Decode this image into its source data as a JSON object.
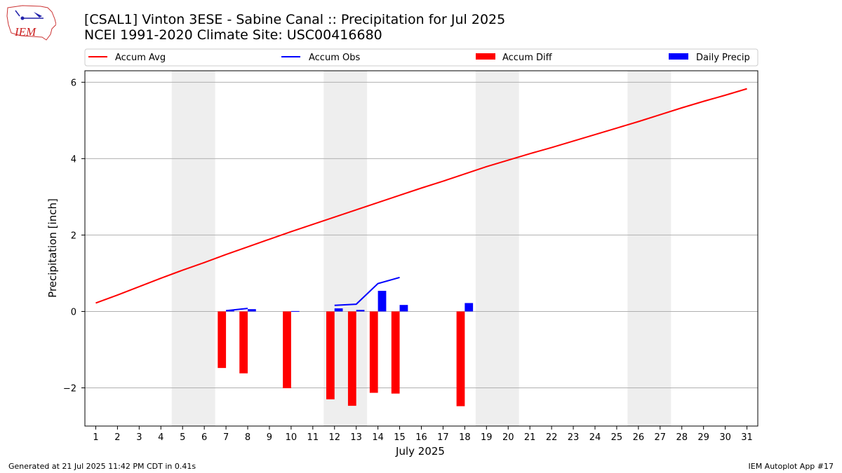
{
  "title": "[CSAL1] Vinton 3ESE - Sabine Canal :: Precipitation for Jul 2025",
  "subtitle": "NCEI 1991-2020 Climate Site: USC00416680",
  "logo_text": "IEM",
  "footer_left": "Generated at 21 Jul 2025 11:42 PM CDT in 0.41s",
  "footer_right": "IEM Autoplot App #17",
  "colors": {
    "accum_avg": "#ff0000",
    "accum_obs": "#0000ff",
    "accum_diff": "#ff0000",
    "daily_precip": "#0000ff",
    "weekend_shade": "#eeeeee",
    "grid": "#b0b0b0"
  },
  "chart_data": {
    "type": "bar",
    "xlabel": "July 2025",
    "ylabel": "Precipitation [inch]",
    "xlim": [
      0.5,
      31.5
    ],
    "ylim": [
      -3.0,
      6.3
    ],
    "yticks": [
      -2,
      0,
      2,
      4,
      6
    ],
    "xticks": [
      1,
      2,
      3,
      4,
      5,
      6,
      7,
      8,
      9,
      10,
      11,
      12,
      13,
      14,
      15,
      16,
      17,
      18,
      19,
      20,
      21,
      22,
      23,
      24,
      25,
      26,
      27,
      28,
      29,
      30,
      31
    ],
    "grid": "horizontal",
    "legend": [
      "Accum Avg",
      "Accum Obs",
      "Accum Diff",
      "Daily Precip"
    ],
    "legend_placement": "top",
    "weekend_shading": [
      [
        4.5,
        6.5
      ],
      [
        11.5,
        13.5
      ],
      [
        18.5,
        20.5
      ],
      [
        25.5,
        27.5
      ]
    ],
    "accum_avg": {
      "name": "Accum Avg",
      "days": [
        1,
        2,
        3,
        4,
        5,
        6,
        7,
        8,
        9,
        10,
        11,
        12,
        13,
        14,
        15,
        16,
        17,
        18,
        19,
        20,
        21,
        22,
        23,
        24,
        25,
        26,
        27,
        28,
        29,
        30,
        31
      ],
      "values": [
        0.22,
        0.43,
        0.65,
        0.87,
        1.08,
        1.28,
        1.49,
        1.69,
        1.89,
        2.09,
        2.28,
        2.47,
        2.66,
        2.85,
        3.04,
        3.23,
        3.41,
        3.6,
        3.79,
        3.96,
        4.13,
        4.29,
        4.46,
        4.63,
        4.8,
        4.97,
        5.15,
        5.33,
        5.5,
        5.66,
        5.83
      ]
    },
    "accum_obs": {
      "name": "Accum Obs",
      "segments": [
        {
          "days": [
            7,
            8
          ],
          "values": [
            0.02,
            0.08
          ]
        },
        {
          "days": [
            12,
            13,
            14,
            15
          ],
          "values": [
            0.16,
            0.19,
            0.73,
            0.89
          ]
        }
      ]
    },
    "accum_diff": {
      "name": "Accum Diff",
      "days": [
        7,
        8,
        10,
        12,
        13,
        14,
        15,
        18
      ],
      "values": [
        -1.48,
        -1.62,
        -2.01,
        -2.3,
        -2.47,
        -2.13,
        -2.15,
        -2.48
      ]
    },
    "daily_precip": {
      "name": "Daily Precip",
      "days": [
        7,
        8,
        10,
        12,
        13,
        14,
        15,
        18
      ],
      "values": [
        0.02,
        0.06,
        0.01,
        0.08,
        0.04,
        0.54,
        0.17,
        0.22
      ]
    }
  }
}
